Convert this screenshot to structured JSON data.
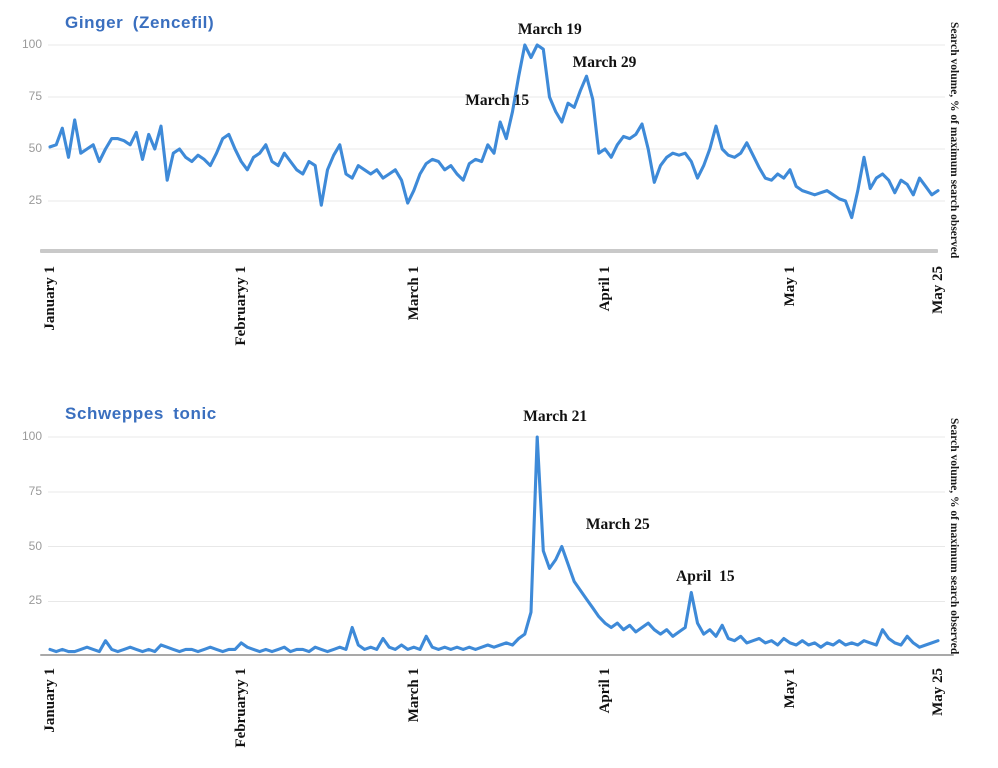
{
  "page": {
    "background": "#ffffff",
    "description_note": "Two stacked search-interest line charts"
  },
  "colors": {
    "line": "#3e8ad8",
    "title": "#3a6fbf",
    "tick_label": "#9a9a9a",
    "gridline": "#e8e8e8",
    "baseline_top": "#c9c9c9",
    "baseline_bottom": "#a9a9a9",
    "annotation_text": "#111111"
  },
  "chart_data": [
    {
      "type": "line",
      "title": "Ginger (Zencefil)",
      "ylabel_right": "Search volume, % of maximum search observed",
      "ylim": [
        0,
        100
      ],
      "yticks": [
        100,
        75,
        50,
        25
      ],
      "grid": "horizontal-only",
      "legend": "none",
      "x_ticks": [
        {
          "label": "January 1",
          "day": 0
        },
        {
          "label": "Februaryy 1",
          "day": 31
        },
        {
          "label": "March 1",
          "day": 59
        },
        {
          "label": "April 1",
          "day": 90
        },
        {
          "label": "May 1",
          "day": 120
        },
        {
          "label": "May 25",
          "day": 144
        }
      ],
      "annotations": [
        {
          "label": "March 15",
          "day": 73,
          "value": 63
        },
        {
          "label": "March 19",
          "day": 77,
          "value": 100
        },
        {
          "label": "March 29",
          "day": 87,
          "value": 85
        }
      ],
      "values": [
        51,
        52,
        60,
        46,
        64,
        48,
        50,
        52,
        44,
        50,
        55,
        55,
        54,
        52,
        58,
        45,
        57,
        50,
        61,
        35,
        48,
        50,
        46,
        44,
        47,
        45,
        42,
        48,
        55,
        57,
        50,
        44,
        40,
        46,
        48,
        52,
        44,
        42,
        48,
        44,
        40,
        38,
        44,
        42,
        23,
        40,
        47,
        52,
        38,
        36,
        42,
        40,
        38,
        40,
        36,
        38,
        40,
        35,
        24,
        30,
        38,
        43,
        45,
        44,
        40,
        42,
        38,
        35,
        43,
        45,
        44,
        52,
        48,
        63,
        55,
        68,
        85,
        100,
        94,
        100,
        98,
        75,
        68,
        63,
        72,
        70,
        78,
        85,
        74,
        48,
        50,
        46,
        52,
        56,
        55,
        57,
        62,
        50,
        34,
        42,
        46,
        48,
        47,
        48,
        44,
        36,
        42,
        50,
        61,
        50,
        47,
        46,
        48,
        53,
        47,
        41,
        36,
        35,
        38,
        36,
        40,
        32,
        30,
        29,
        28,
        29,
        30,
        28,
        26,
        25,
        17,
        30,
        46,
        31,
        36,
        38,
        35,
        29,
        35,
        33,
        28,
        36,
        32,
        28,
        30
      ]
    },
    {
      "type": "line",
      "title": "Schweppes tonic",
      "ylabel_right": "Search volume, % of maximum search observed",
      "ylim": [
        0,
        100
      ],
      "yticks": [
        100,
        75,
        50,
        25
      ],
      "grid": "horizontal-only",
      "legend": "none",
      "x_ticks": [
        {
          "label": "January 1",
          "day": 0
        },
        {
          "label": "Februaryy 1",
          "day": 31
        },
        {
          "label": "March 1",
          "day": 59
        },
        {
          "label": "April 1",
          "day": 90
        },
        {
          "label": "May 1",
          "day": 120
        },
        {
          "label": "May 25",
          "day": 144
        }
      ],
      "annotations": [
        {
          "label": "March 21",
          "day": 79,
          "value": 100
        },
        {
          "label": "March 25",
          "day": 83,
          "value": 50
        },
        {
          "label": "April  15",
          "day": 104,
          "value": 29
        }
      ],
      "values": [
        3,
        2,
        3,
        2,
        2,
        3,
        4,
        3,
        2,
        7,
        3,
        2,
        3,
        4,
        3,
        2,
        3,
        2,
        5,
        4,
        3,
        2,
        3,
        3,
        2,
        3,
        4,
        3,
        2,
        3,
        3,
        6,
        4,
        3,
        2,
        3,
        2,
        3,
        4,
        2,
        3,
        3,
        2,
        4,
        3,
        2,
        3,
        4,
        3,
        13,
        5,
        3,
        4,
        3,
        8,
        4,
        3,
        5,
        3,
        4,
        3,
        9,
        4,
        3,
        4,
        3,
        4,
        3,
        4,
        3,
        4,
        5,
        4,
        5,
        6,
        5,
        8,
        10,
        20,
        100,
        48,
        40,
        44,
        50,
        42,
        34,
        30,
        26,
        22,
        18,
        15,
        13,
        15,
        12,
        14,
        11,
        13,
        15,
        12,
        10,
        12,
        9,
        11,
        13,
        29,
        15,
        10,
        12,
        9,
        14,
        8,
        7,
        9,
        6,
        7,
        8,
        6,
        7,
        5,
        8,
        6,
        5,
        7,
        5,
        6,
        4,
        6,
        5,
        7,
        5,
        6,
        5,
        7,
        6,
        5,
        12,
        8,
        6,
        5,
        9,
        6,
        4,
        5,
        6,
        7
      ]
    }
  ]
}
